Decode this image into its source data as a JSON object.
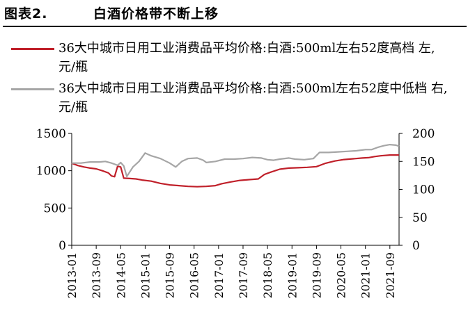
{
  "figure": {
    "number": "图表2.",
    "title": "白酒价格带不断上移"
  },
  "colors": {
    "series_high": "#c0202a",
    "series_low": "#a6a6a6",
    "axis": "#000000"
  },
  "chart_data": {
    "type": "line",
    "title": "",
    "xlabel": "",
    "ylabel": "",
    "ylabel_right": "",
    "ylim": [
      0,
      1500
    ],
    "ylim_right": [
      0,
      200
    ],
    "yticks_left": [
      0,
      500,
      1000,
      1500
    ],
    "yticks_right": [
      0,
      50,
      100,
      150,
      200
    ],
    "grid": false,
    "legend_position": "top",
    "x_tick_labels": [
      "2013-01",
      "2013-09",
      "2014-05",
      "2015-01",
      "2015-09",
      "2016-05",
      "2017-01",
      "2017-09",
      "2018-05",
      "2019-01",
      "2019-09",
      "2020-05",
      "2021-01",
      "2021-09"
    ],
    "series": [
      {
        "name": "36大中城市日用工业消费品平均价格:白酒:500ml左右52度高档 左, 元/瓶",
        "axis": "left",
        "points": [
          [
            "2013-01",
            1100
          ],
          [
            "2013-03",
            1070
          ],
          [
            "2013-05",
            1050
          ],
          [
            "2013-07",
            1035
          ],
          [
            "2013-09",
            1025
          ],
          [
            "2013-11",
            1000
          ],
          [
            "2014-01",
            970
          ],
          [
            "2014-02",
            930
          ],
          [
            "2014-03",
            920
          ],
          [
            "2014-04",
            1060
          ],
          [
            "2014-05",
            1050
          ],
          [
            "2014-06",
            900
          ],
          [
            "2014-08",
            895
          ],
          [
            "2014-10",
            890
          ],
          [
            "2014-12",
            875
          ],
          [
            "2015-03",
            860
          ],
          [
            "2015-06",
            830
          ],
          [
            "2015-09",
            810
          ],
          [
            "2015-12",
            800
          ],
          [
            "2016-03",
            790
          ],
          [
            "2016-06",
            785
          ],
          [
            "2016-09",
            790
          ],
          [
            "2016-12",
            800
          ],
          [
            "2017-02",
            825
          ],
          [
            "2017-05",
            850
          ],
          [
            "2017-08",
            870
          ],
          [
            "2017-11",
            880
          ],
          [
            "2018-02",
            890
          ],
          [
            "2018-04",
            950
          ],
          [
            "2018-06",
            980
          ],
          [
            "2018-09",
            1020
          ],
          [
            "2018-12",
            1035
          ],
          [
            "2019-03",
            1040
          ],
          [
            "2019-06",
            1045
          ],
          [
            "2019-09",
            1055
          ],
          [
            "2019-12",
            1100
          ],
          [
            "2020-03",
            1130
          ],
          [
            "2020-06",
            1150
          ],
          [
            "2020-09",
            1160
          ],
          [
            "2020-12",
            1170
          ],
          [
            "2021-02",
            1175
          ],
          [
            "2021-04",
            1190
          ],
          [
            "2021-06",
            1200
          ],
          [
            "2021-09",
            1210
          ],
          [
            "2021-12",
            1210
          ]
        ]
      },
      {
        "name": "36大中城市日用工业消费品平均价格:白酒:500ml左右52度中低档 右, 元/瓶",
        "axis": "right",
        "points": [
          [
            "2013-01",
            147
          ],
          [
            "2013-04",
            147
          ],
          [
            "2013-07",
            149
          ],
          [
            "2013-10",
            149
          ],
          [
            "2013-12",
            150
          ],
          [
            "2014-02",
            147
          ],
          [
            "2014-04",
            143
          ],
          [
            "2014-05",
            148
          ],
          [
            "2014-06",
            142
          ],
          [
            "2014-07",
            123
          ],
          [
            "2014-09",
            140
          ],
          [
            "2014-11",
            150
          ],
          [
            "2015-01",
            165
          ],
          [
            "2015-03",
            160
          ],
          [
            "2015-06",
            155
          ],
          [
            "2015-09",
            147
          ],
          [
            "2015-11",
            140
          ],
          [
            "2016-01",
            150
          ],
          [
            "2016-03",
            155
          ],
          [
            "2016-06",
            156
          ],
          [
            "2016-08",
            152
          ],
          [
            "2016-09",
            148
          ],
          [
            "2016-12",
            150
          ],
          [
            "2017-03",
            154
          ],
          [
            "2017-06",
            154
          ],
          [
            "2017-09",
            155
          ],
          [
            "2017-12",
            157
          ],
          [
            "2018-03",
            156
          ],
          [
            "2018-05",
            153
          ],
          [
            "2018-07",
            152
          ],
          [
            "2018-09",
            154
          ],
          [
            "2018-12",
            156
          ],
          [
            "2019-02",
            154
          ],
          [
            "2019-05",
            153
          ],
          [
            "2019-08",
            155
          ],
          [
            "2019-10",
            166
          ],
          [
            "2020-01",
            166
          ],
          [
            "2020-04",
            167
          ],
          [
            "2020-07",
            168
          ],
          [
            "2020-10",
            169
          ],
          [
            "2021-01",
            171
          ],
          [
            "2021-03",
            171
          ],
          [
            "2021-05",
            175
          ],
          [
            "2021-07",
            178
          ],
          [
            "2021-09",
            180
          ],
          [
            "2021-11",
            179
          ],
          [
            "2021-12",
            177
          ]
        ]
      }
    ]
  }
}
